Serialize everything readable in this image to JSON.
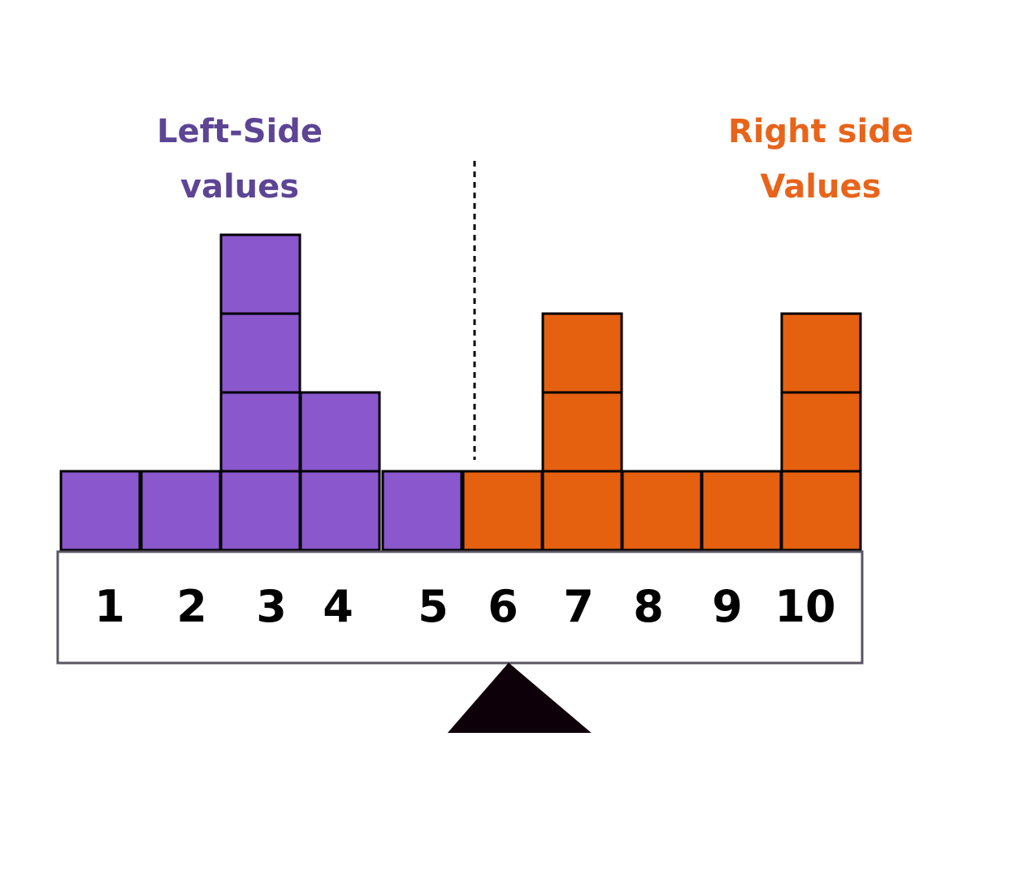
{
  "left_heading": {
    "line1": "Left-Side",
    "line2": "values"
  },
  "right_heading": {
    "line1": "Right side",
    "line2": "Values"
  },
  "colors": {
    "left": "#8a57cc",
    "right": "#e5600f",
    "left_text": "#5c4594",
    "right_text": "#e8641b",
    "outline": "#000000"
  },
  "chart_data": {
    "type": "bar",
    "categories": [
      "1",
      "2",
      "3",
      "4",
      "5",
      "6",
      "7",
      "8",
      "9",
      "10"
    ],
    "values": [
      1,
      1,
      4,
      2,
      1,
      1,
      3,
      1,
      1,
      3
    ],
    "left_side_values": [
      "1",
      "2",
      "3",
      "4",
      "5"
    ],
    "right_side_values": [
      "6",
      "7",
      "8",
      "9",
      "10"
    ],
    "title": "",
    "xlabel": "",
    "ylabel": ""
  }
}
